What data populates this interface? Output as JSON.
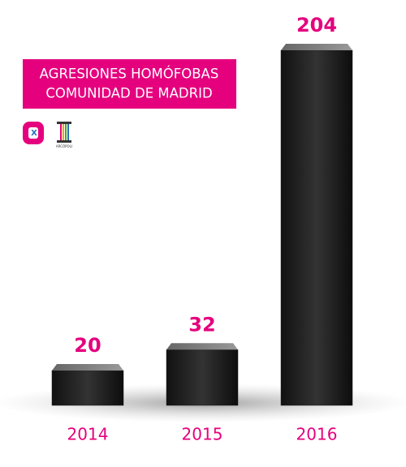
{
  "chart_data": {
    "type": "bar",
    "title": [
      "AGRESIONES HOMÓFOBAS",
      "COMUNIDAD DE MADRID"
    ],
    "logo_text": "ARCÓPOLI",
    "categories": [
      "2014",
      "2015",
      "2016"
    ],
    "values": [
      20,
      32,
      204
    ],
    "color": "#1e1e1e",
    "accent": "#e5007e"
  }
}
